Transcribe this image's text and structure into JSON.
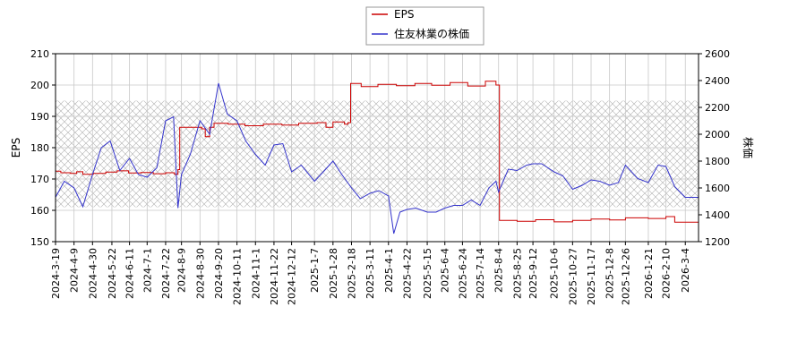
{
  "chart_data": {
    "type": "line",
    "grid": true,
    "legend_placement": "top-center",
    "shaded_band": {
      "axis": "left",
      "range": [
        161,
        195
      ],
      "pattern": "crosshatch"
    },
    "x_axis": {
      "type": "date",
      "tick_labels": [
        "2024-3-19",
        "2024-4-9",
        "2024-4-30",
        "2024-5-22",
        "2024-6-11",
        "2024-7-1",
        "2024-7-22",
        "2024-8-9",
        "2024-8-30",
        "2024-9-20",
        "2024-10-11",
        "2024-11-1",
        "2024-11-22",
        "2024-12-12",
        "2025-1-7",
        "2025-1-28",
        "2025-2-18",
        "2025-3-11",
        "2025-4-1",
        "2025-4-22",
        "2025-5-15",
        "2025-6-4",
        "2025-6-24",
        "2025-7-14",
        "2025-8-4",
        "2025-8-25",
        "2025-9-12",
        "2025-10-6",
        "2025-10-27",
        "2025-11-17",
        "2025-12-8",
        "2025-12-26",
        "2026-1-21",
        "2026-2-10",
        "2026-3-4"
      ],
      "range": [
        "2024-3-19",
        "2026-3-19"
      ]
    },
    "left_axis": {
      "label": "EPS",
      "ylim": [
        150,
        210
      ],
      "ticks": [
        150,
        160,
        170,
        180,
        190,
        200,
        210
      ]
    },
    "right_axis": {
      "label": "株価",
      "ylim": [
        1200,
        2600
      ],
      "ticks": [
        1200,
        1400,
        1600,
        1800,
        2000,
        2200,
        2400,
        2600
      ]
    },
    "series": [
      {
        "name": "EPS",
        "axis": "left",
        "color": "#cc0000",
        "points": [
          [
            "2024-3-19",
            172.5
          ],
          [
            "2024-3-25",
            172
          ],
          [
            "2024-4-5",
            171.8
          ],
          [
            "2024-4-12",
            172.3
          ],
          [
            "2024-4-19",
            171.5
          ],
          [
            "2024-5-1",
            171.8
          ],
          [
            "2024-5-15",
            172.2
          ],
          [
            "2024-5-28",
            172.6
          ],
          [
            "2024-6-10",
            171.9
          ],
          [
            "2024-6-24",
            172.1
          ],
          [
            "2024-7-8",
            171.7
          ],
          [
            "2024-7-22",
            172.0
          ],
          [
            "2024-8-1",
            171.5
          ],
          [
            "2024-8-5",
            173.0
          ],
          [
            "2024-8-7",
            186.5
          ],
          [
            "2024-8-20",
            186.5
          ],
          [
            "2024-9-1",
            186.0
          ],
          [
            "2024-9-5",
            183.5
          ],
          [
            "2024-9-10",
            186.5
          ],
          [
            "2024-9-15",
            187.8
          ],
          [
            "2024-10-1",
            187.5
          ],
          [
            "2024-10-20",
            187.0
          ],
          [
            "2024-11-10",
            187.5
          ],
          [
            "2024-12-1",
            187.2
          ],
          [
            "2024-12-20",
            187.8
          ],
          [
            "2025-1-10",
            188.0
          ],
          [
            "2025-1-20",
            186.5
          ],
          [
            "2025-1-28",
            188.2
          ],
          [
            "2025-2-10",
            187.5
          ],
          [
            "2025-2-14",
            188.0
          ],
          [
            "2025-2-17",
            200.5
          ],
          [
            "2025-3-1",
            199.5
          ],
          [
            "2025-3-20",
            200.2
          ],
          [
            "2025-4-10",
            199.8
          ],
          [
            "2025-5-1",
            200.5
          ],
          [
            "2025-5-20",
            199.9
          ],
          [
            "2025-6-10",
            200.8
          ],
          [
            "2025-6-30",
            199.7
          ],
          [
            "2025-7-20",
            201.2
          ],
          [
            "2025-8-1",
            200.0
          ],
          [
            "2025-8-5",
            156.8
          ],
          [
            "2025-8-25",
            156.5
          ],
          [
            "2025-9-15",
            157.0
          ],
          [
            "2025-10-6",
            156.3
          ],
          [
            "2025-10-27",
            156.8
          ],
          [
            "2025-11-17",
            157.2
          ],
          [
            "2025-12-8",
            156.9
          ],
          [
            "2025-12-26",
            157.6
          ],
          [
            "2026-1-21",
            157.4
          ],
          [
            "2026-2-10",
            158.0
          ],
          [
            "2026-2-20",
            156.2
          ],
          [
            "2026-3-19",
            155.8
          ]
        ]
      },
      {
        "name": "住友林業の株価",
        "axis": "right",
        "color": "#3333cc",
        "points": [
          [
            "2024-3-19",
            1530
          ],
          [
            "2024-3-29",
            1650
          ],
          [
            "2024-4-9",
            1600
          ],
          [
            "2024-4-19",
            1460
          ],
          [
            "2024-4-30",
            1700
          ],
          [
            "2024-5-10",
            1900
          ],
          [
            "2024-5-20",
            1950
          ],
          [
            "2024-5-31",
            1730
          ],
          [
            "2024-6-11",
            1820
          ],
          [
            "2024-6-21",
            1700
          ],
          [
            "2024-7-1",
            1680
          ],
          [
            "2024-7-12",
            1750
          ],
          [
            "2024-7-22",
            2100
          ],
          [
            "2024-7-31",
            2130
          ],
          [
            "2024-8-5",
            1450
          ],
          [
            "2024-8-9",
            1700
          ],
          [
            "2024-8-19",
            1850
          ],
          [
            "2024-8-30",
            2100
          ],
          [
            "2024-9-10",
            2000
          ],
          [
            "2024-9-20",
            2380
          ],
          [
            "2024-9-30",
            2150
          ],
          [
            "2024-10-11",
            2100
          ],
          [
            "2024-10-21",
            1950
          ],
          [
            "2024-11-1",
            1850
          ],
          [
            "2024-11-12",
            1770
          ],
          [
            "2024-11-22",
            1920
          ],
          [
            "2024-12-2",
            1930
          ],
          [
            "2024-12-12",
            1720
          ],
          [
            "2024-12-23",
            1770
          ],
          [
            "2025-1-7",
            1650
          ],
          [
            "2025-1-17",
            1720
          ],
          [
            "2025-1-28",
            1800
          ],
          [
            "2025-2-7",
            1700
          ],
          [
            "2025-2-18",
            1600
          ],
          [
            "2025-2-28",
            1520
          ],
          [
            "2025-3-11",
            1560
          ],
          [
            "2025-3-21",
            1580
          ],
          [
            "2025-4-1",
            1540
          ],
          [
            "2025-4-7",
            1260
          ],
          [
            "2025-4-14",
            1420
          ],
          [
            "2025-4-22",
            1440
          ],
          [
            "2025-5-2",
            1450
          ],
          [
            "2025-5-15",
            1420
          ],
          [
            "2025-5-25",
            1420
          ],
          [
            "2025-6-4",
            1450
          ],
          [
            "2025-6-14",
            1470
          ],
          [
            "2025-6-24",
            1470
          ],
          [
            "2025-7-4",
            1510
          ],
          [
            "2025-7-14",
            1470
          ],
          [
            "2025-7-24",
            1600
          ],
          [
            "2025-8-1",
            1650
          ],
          [
            "2025-8-4",
            1570
          ],
          [
            "2025-8-15",
            1740
          ],
          [
            "2025-8-25",
            1730
          ],
          [
            "2025-9-5",
            1770
          ],
          [
            "2025-9-12",
            1780
          ],
          [
            "2025-9-22",
            1780
          ],
          [
            "2025-10-6",
            1720
          ],
          [
            "2025-10-16",
            1690
          ],
          [
            "2025-10-27",
            1590
          ],
          [
            "2025-11-7",
            1620
          ],
          [
            "2025-11-17",
            1660
          ],
          [
            "2025-11-27",
            1650
          ],
          [
            "2025-12-8",
            1620
          ],
          [
            "2025-12-18",
            1640
          ],
          [
            "2025-12-26",
            1770
          ],
          [
            "2026-1-9",
            1670
          ],
          [
            "2026-1-21",
            1640
          ],
          [
            "2026-2-1",
            1770
          ],
          [
            "2026-2-10",
            1760
          ],
          [
            "2026-2-20",
            1610
          ],
          [
            "2026-3-4",
            1530
          ],
          [
            "2026-3-19",
            1530
          ]
        ]
      }
    ]
  }
}
